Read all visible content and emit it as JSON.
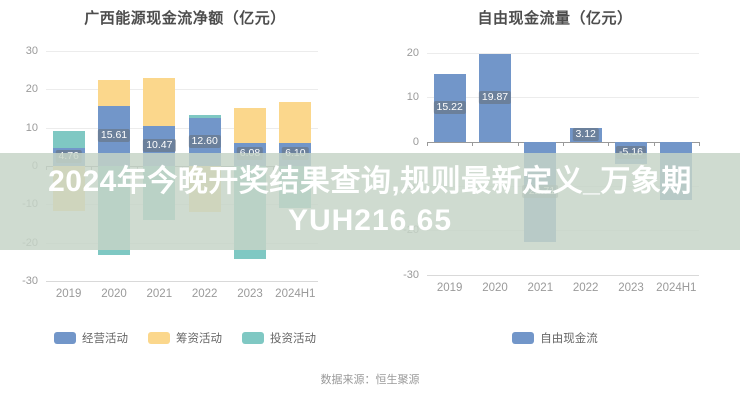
{
  "overlay": {
    "line1": "2024年今晚开奖结果查询,规则最新定义_万象期",
    "line2": "YUH216.65"
  },
  "source_note": "数据来源：恒生聚源",
  "chart_data": [
    {
      "type": "bar",
      "stacked": true,
      "title": "广西能源现金流净额（亿元）",
      "categories": [
        "2019",
        "2020",
        "2021",
        "2022",
        "2023",
        "2024H1"
      ],
      "series": [
        {
          "name": "经营活动",
          "color": "#7296c9",
          "values": [
            4.76,
            15.61,
            10.47,
            12.6,
            6.08,
            6.1
          ],
          "labels": [
            "4.76",
            "15.61",
            "10.47",
            "12.60",
            "6.08",
            "6.10"
          ]
        },
        {
          "name": "筹资活动",
          "color": "#fbd78c",
          "values": [
            -11.9,
            6.9,
            12.4,
            -12.0,
            9.1,
            10.5
          ],
          "labels": [
            null,
            null,
            null,
            null,
            null,
            null
          ]
        },
        {
          "name": "投资活动",
          "color": "#7fc8c3",
          "values": [
            4.4,
            -23.3,
            -14.0,
            0.8,
            -24.4,
            -10.9
          ],
          "labels": [
            null,
            null,
            null,
            null,
            null,
            null
          ]
        }
      ],
      "ylim": [
        -30,
        30
      ],
      "ytick_step": 10,
      "grid": true,
      "legend_position": "bottom"
    },
    {
      "type": "bar",
      "stacked": false,
      "title": "自由现金流量（亿元）",
      "categories": [
        "2019",
        "2020",
        "2021",
        "2022",
        "2023",
        "2024H1"
      ],
      "series": [
        {
          "name": "自由现金流",
          "color": "#7296c9",
          "values": [
            15.22,
            19.87,
            -22.71,
            3.12,
            -5.16,
            -13.1
          ],
          "labels": [
            "15.22",
            "19.87",
            "-22.71",
            "3.12",
            "-5.16",
            null
          ]
        }
      ],
      "ylim": [
        -30,
        20
      ],
      "ytick_step": 10,
      "grid": true,
      "legend_position": "bottom"
    }
  ]
}
